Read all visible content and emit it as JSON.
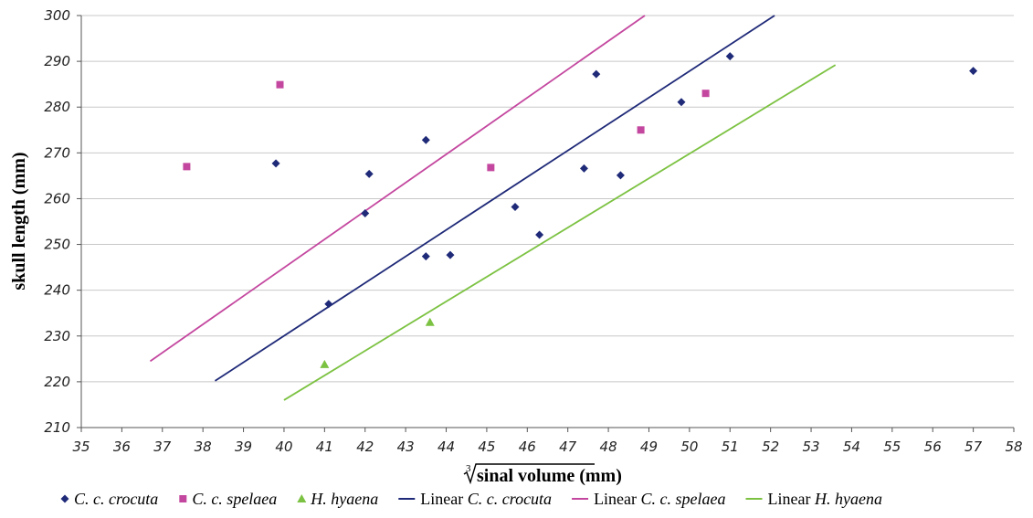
{
  "chart_data": {
    "type": "scatter",
    "xlabel_radical": "3",
    "xlabel": "sinal volume (mm)",
    "ylabel": "skull length (mm)",
    "xlim": [
      35,
      58
    ],
    "ylim": [
      210,
      300
    ],
    "xticks": [
      35,
      36,
      37,
      38,
      39,
      40,
      41,
      42,
      43,
      44,
      45,
      46,
      47,
      48,
      49,
      50,
      51,
      52,
      53,
      54,
      55,
      56,
      57,
      58
    ],
    "yticks": [
      210,
      220,
      230,
      240,
      250,
      260,
      270,
      280,
      290,
      300
    ],
    "grid": "horizontal",
    "legend_position": "bottom",
    "series": [
      {
        "name": "C. c. crocuta",
        "name_prefix": "",
        "name_italic": "C. c. crocuta",
        "marker": "diamond",
        "color": "#1f2a78",
        "points": [
          [
            39.8,
            267.7
          ],
          [
            41.1,
            237.0
          ],
          [
            42.0,
            256.8
          ],
          [
            42.1,
            265.4
          ],
          [
            43.5,
            247.4
          ],
          [
            43.5,
            272.8
          ],
          [
            44.1,
            247.7
          ],
          [
            45.7,
            258.2
          ],
          [
            46.3,
            252.1
          ],
          [
            47.4,
            266.6
          ],
          [
            47.7,
            287.2
          ],
          [
            48.3,
            265.1
          ],
          [
            49.8,
            281.1
          ],
          [
            51.0,
            291.1
          ],
          [
            57.0,
            287.9
          ]
        ]
      },
      {
        "name": "C. c. spelaea",
        "name_prefix": "",
        "name_italic": "C. c. spelaea",
        "marker": "square",
        "color": "#c4479f",
        "points": [
          [
            37.6,
            267.0
          ],
          [
            39.9,
            284.9
          ],
          [
            45.1,
            266.8
          ],
          [
            48.8,
            275.0
          ],
          [
            50.4,
            283.0
          ]
        ]
      },
      {
        "name": "H. hyaena",
        "name_prefix": "",
        "name_italic": "H. hyaena",
        "marker": "triangle",
        "color": "#7cc242",
        "points": [
          [
            41.0,
            223.8
          ],
          [
            43.6,
            233.0
          ]
        ]
      }
    ],
    "trendlines": [
      {
        "name": "Linear C. c. crocuta",
        "name_prefix": "Linear ",
        "name_italic": "C. c. crocuta",
        "color": "#1f2a78",
        "x": [
          38.3,
          52.1
        ],
        "y": [
          220.2,
          300.0
        ]
      },
      {
        "name": "Linear C. c. spelaea",
        "name_prefix": "Linear ",
        "name_italic": "C. c. spelaea",
        "color": "#c4479f",
        "x": [
          36.7,
          48.9
        ],
        "y": [
          224.5,
          300.0
        ]
      },
      {
        "name": "Linear H. hyaena",
        "name_prefix": "Linear ",
        "name_italic": "H. hyaena",
        "color": "#7cc242",
        "x": [
          40.0,
          53.6
        ],
        "y": [
          216.0,
          289.2
        ]
      }
    ]
  }
}
